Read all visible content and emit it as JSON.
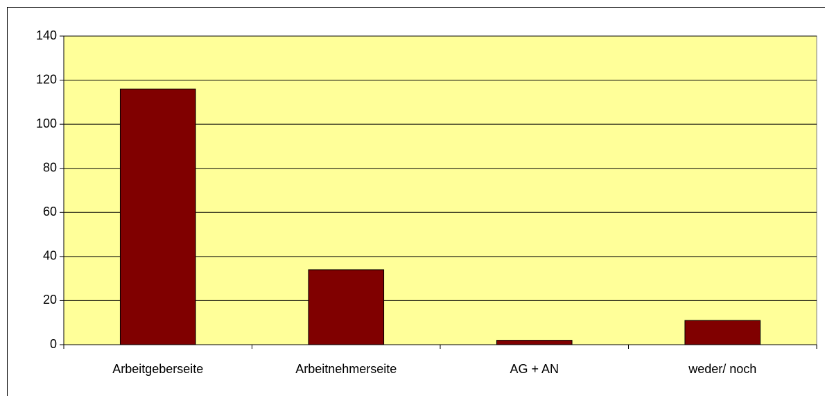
{
  "chart_data": {
    "type": "bar",
    "categories": [
      "Arbeitgeberseite",
      "Arbeitnehmerseite",
      "AG + AN",
      "weder/ noch"
    ],
    "values": [
      116,
      34,
      2,
      11
    ],
    "color": "#800000",
    "ylim": [
      0,
      140
    ],
    "yticks": [
      0,
      20,
      40,
      60,
      80,
      100,
      120,
      140
    ],
    "grid": true
  }
}
